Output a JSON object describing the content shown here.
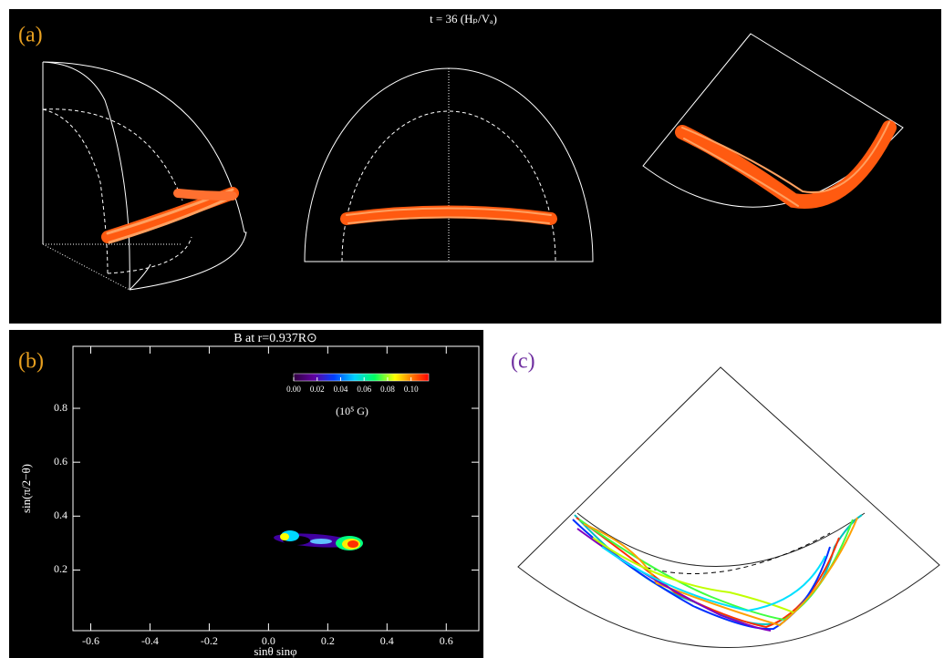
{
  "panel_a": {
    "label": "(a)",
    "title": "t = 36 (Hₚ/Vₐ)"
  },
  "panel_b": {
    "label": "(b)",
    "title": "B at r=0.937R⊙",
    "xlabel": "sinθ sinφ",
    "ylabel": "sin(π/2−θ)",
    "xlim": [
      -0.66,
      0.71
    ],
    "ylim": [
      -0.025,
      1.03
    ],
    "xticks": [
      -0.6,
      -0.4,
      -0.2,
      {
        "value": 0,
        "label": "0.0"
      },
      0.2,
      0.4,
      0.6
    ],
    "yticks": [
      0.2,
      0.4,
      0.6,
      0.8
    ],
    "colorbar": {
      "lim": [
        0,
        0.115
      ],
      "unit": "(10⁵ G)",
      "ticks": [
        {
          "value": 0,
          "label": "0.00"
        },
        {
          "value": 0.02,
          "label": "0.02"
        },
        {
          "value": 0.04,
          "label": "0.04"
        },
        {
          "value": 0.06,
          "label": "0.06"
        },
        {
          "value": 0.08,
          "label": "0.08"
        },
        {
          "value": 0.1,
          "label": "0.10"
        }
      ]
    }
  },
  "panel_c": {
    "label": "(c)"
  }
}
